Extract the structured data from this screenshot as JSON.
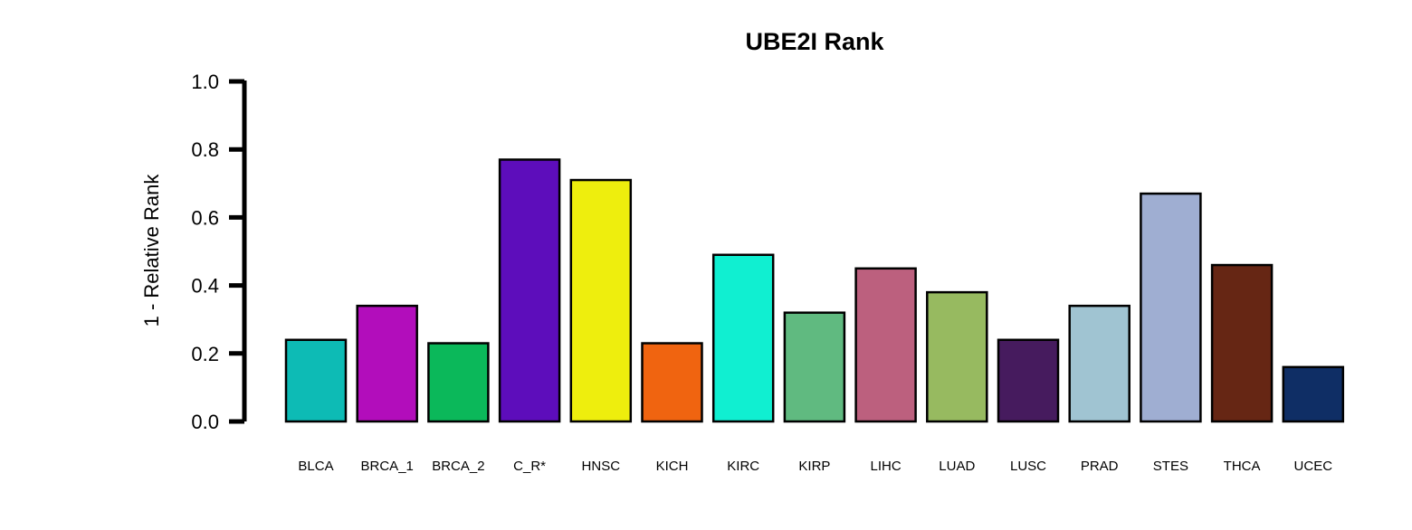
{
  "chart_data": {
    "type": "bar",
    "title": "UBE2I Rank",
    "xlabel": "",
    "ylabel": "1 - Relative Rank",
    "ylim": [
      0,
      1.0
    ],
    "yticks": [
      "0.0",
      "0.2",
      "0.4",
      "0.6",
      "0.8",
      "1.0"
    ],
    "grid": false,
    "legend": "none",
    "categories": [
      "BLCA",
      "BRCA_1",
      "BRCA_2",
      "C_R*",
      "HNSC",
      "KICH",
      "KIRC",
      "KIRP",
      "LIHC",
      "LUAD",
      "LUSC",
      "PRAD",
      "STES",
      "THCA",
      "UCEC"
    ],
    "values": [
      0.24,
      0.34,
      0.23,
      0.77,
      0.71,
      0.23,
      0.49,
      0.32,
      0.45,
      0.38,
      0.24,
      0.34,
      0.67,
      0.46,
      0.16
    ],
    "colors": [
      "#0DBBB5",
      "#B20DBB",
      "#0BB85A",
      "#5D0DBB",
      "#EEEE0D",
      "#F06410",
      "#10EFD1",
      "#60BA80",
      "#BC607E",
      "#97BA60",
      "#461B5E",
      "#A0C4D2",
      "#9FAED2",
      "#662614",
      "#0F2E65"
    ]
  }
}
